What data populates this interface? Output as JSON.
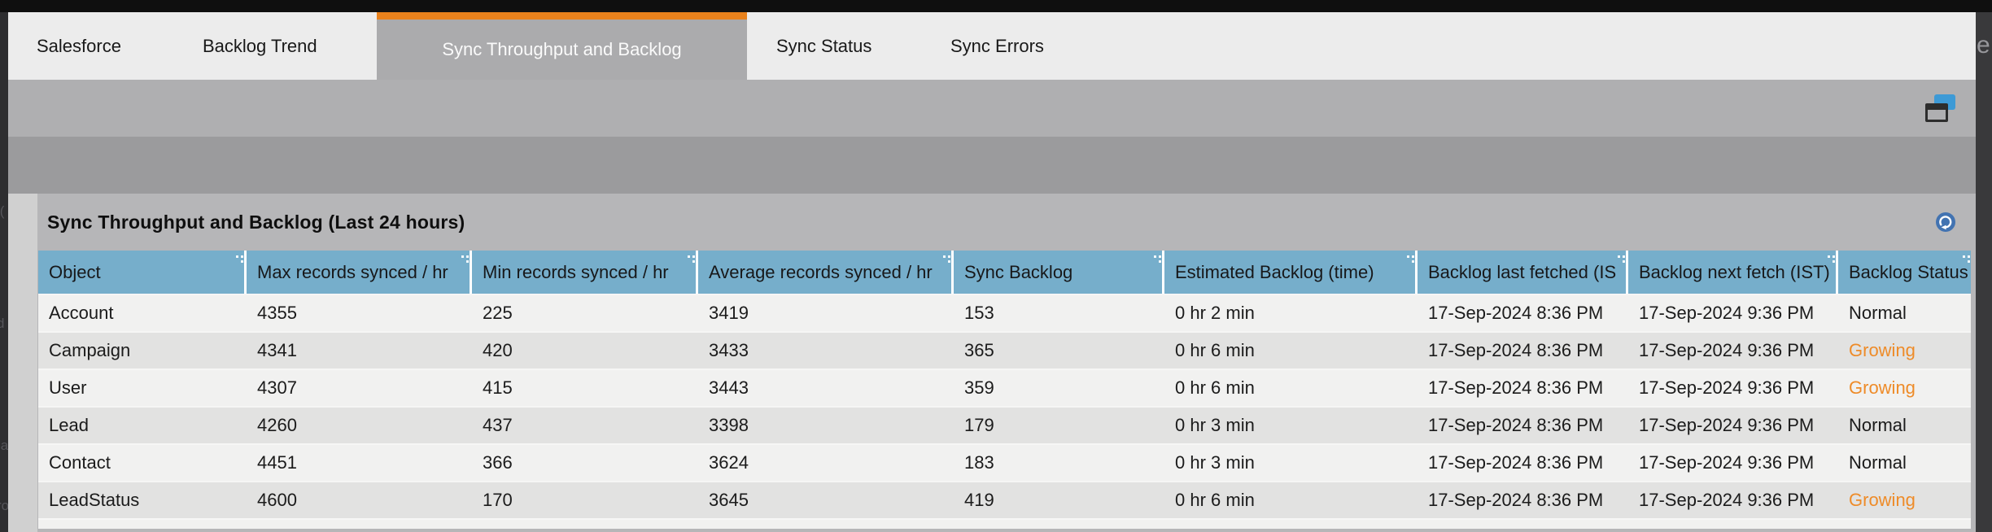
{
  "edges": {
    "right_edge_letter": "e",
    "left_edge_glyphs": [
      "i(",
      "d",
      ".a",
      "ro"
    ]
  },
  "tabs": [
    {
      "label": "Salesforce",
      "active": false
    },
    {
      "label": "Backlog Trend",
      "active": false
    },
    {
      "label": "Sync Throughput and Backlog",
      "active": true
    },
    {
      "label": "Sync Status",
      "active": false
    },
    {
      "label": "Sync Errors",
      "active": false
    }
  ],
  "toolbar": {
    "window_icon": "overlapping-windows-icon"
  },
  "panel": {
    "title": "Sync Throughput and Backlog (Last 24 hours)",
    "refresh_icon": "refresh-icon"
  },
  "table": {
    "columns": [
      {
        "label": "Object"
      },
      {
        "label": "Max records synced / hr"
      },
      {
        "label": "Min records synced / hr"
      },
      {
        "label": "Average records synced / hr"
      },
      {
        "label": "Sync Backlog"
      },
      {
        "label": "Estimated Backlog (time)"
      },
      {
        "label": "Backlog last fetched (IS"
      },
      {
        "label": "Backlog next fetch (IST)"
      },
      {
        "label": "Backlog Status"
      }
    ],
    "rows": [
      {
        "cells": [
          "Account",
          "4355",
          "225",
          "3419",
          "153",
          "0 hr 2 min",
          "17-Sep-2024 8:36 PM",
          "17-Sep-2024 9:36 PM",
          "Normal"
        ]
      },
      {
        "cells": [
          "Campaign",
          "4341",
          "420",
          "3433",
          "365",
          "0 hr 6 min",
          "17-Sep-2024 8:36 PM",
          "17-Sep-2024 9:36 PM",
          "Growing"
        ]
      },
      {
        "cells": [
          "User",
          "4307",
          "415",
          "3443",
          "359",
          "0 hr 6 min",
          "17-Sep-2024 8:36 PM",
          "17-Sep-2024 9:36 PM",
          "Growing"
        ]
      },
      {
        "cells": [
          "Lead",
          "4260",
          "437",
          "3398",
          "179",
          "0 hr 3 min",
          "17-Sep-2024 8:36 PM",
          "17-Sep-2024 9:36 PM",
          "Normal"
        ]
      },
      {
        "cells": [
          "Contact",
          "4451",
          "366",
          "3624",
          "183",
          "0 hr 3 min",
          "17-Sep-2024 8:36 PM",
          "17-Sep-2024 9:36 PM",
          "Normal"
        ]
      },
      {
        "cells": [
          "LeadStatus",
          "4600",
          "170",
          "3645",
          "419",
          "0 hr 6 min",
          "17-Sep-2024 8:36 PM",
          "17-Sep-2024 9:36 PM",
          "Growing"
        ]
      }
    ]
  },
  "colors": {
    "accent_orange": "#e8811c",
    "header_blue": "#76aecb",
    "status_normal": "#1b1b1b",
    "status_growing": "#ee8b28",
    "refresh_blue": "#4273b1",
    "window_icon_blue": "#3d9ad6"
  }
}
